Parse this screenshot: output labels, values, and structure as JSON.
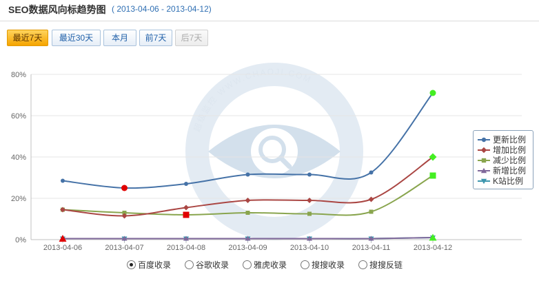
{
  "header": {
    "title": "SEO数据风向标趋势图",
    "date_range": "( 2013-04-06 - 2013-04-12)"
  },
  "period_buttons": [
    {
      "label": "最近7天",
      "state": "active"
    },
    {
      "label": "最近30天",
      "state": "normal"
    },
    {
      "label": "本月",
      "state": "normal"
    },
    {
      "label": "前7天",
      "state": "normal"
    },
    {
      "label": "后7天",
      "state": "disabled"
    }
  ],
  "watermark": {
    "text": "超级监控 WWW.CHAOJI.COM"
  },
  "chart_data": {
    "type": "line",
    "categories": [
      "2013-04-06",
      "2013-04-07",
      "2013-04-08",
      "2013-04-09",
      "2013-04-10",
      "2013-04-11",
      "2013-04-12"
    ],
    "y_ticks": [
      "0%",
      "20%",
      "40%",
      "60%",
      "80%"
    ],
    "ylim": [
      0,
      80
    ],
    "grid": true,
    "legend_position": "right",
    "series": [
      {
        "name": "更新比例",
        "color": "#4572a7",
        "marker": "circle",
        "values": [
          28.5,
          25,
          27,
          31.5,
          31.5,
          32.5,
          71
        ]
      },
      {
        "name": "增加比例",
        "color": "#aa4643",
        "marker": "diamond",
        "values": [
          14.5,
          11.5,
          15.5,
          19,
          19,
          19.5,
          40
        ]
      },
      {
        "name": "减少比例",
        "color": "#89a54e",
        "marker": "square",
        "values": [
          14.5,
          13,
          12,
          13,
          12.5,
          13.5,
          31
        ]
      },
      {
        "name": "新增比例",
        "color": "#80699b",
        "marker": "triangle",
        "values": [
          0.5,
          0.5,
          0.5,
          0.5,
          0.5,
          0.5,
          1
        ]
      },
      {
        "name": "K站比例",
        "color": "#3d96ae",
        "marker": "triangle-down",
        "values": [
          0.5,
          0.5,
          0.5,
          0.5,
          0.5,
          0.5,
          1
        ]
      }
    ],
    "highlighted_points": [
      {
        "series": "更新比例",
        "category": "2013-04-07",
        "color": "#e00000"
      },
      {
        "series": "更新比例",
        "category": "2013-04-12",
        "color": "#44ee22"
      },
      {
        "series": "增加比例",
        "category": "2013-04-12",
        "color": "#44ee22"
      },
      {
        "series": "减少比例",
        "category": "2013-04-08",
        "color": "#e00000"
      },
      {
        "series": "减少比例",
        "category": "2013-04-12",
        "color": "#44ee22"
      },
      {
        "series": "新增比例",
        "category": "2013-04-06",
        "color": "#e00000"
      },
      {
        "series": "新增比例",
        "category": "2013-04-12",
        "color": "#44ee22"
      }
    ]
  },
  "source_options": [
    {
      "label": "百度收录",
      "selected": true
    },
    {
      "label": "谷歌收录",
      "selected": false
    },
    {
      "label": "雅虎收录",
      "selected": false
    },
    {
      "label": "搜搜收录",
      "selected": false
    },
    {
      "label": "搜搜反链",
      "selected": false
    }
  ]
}
